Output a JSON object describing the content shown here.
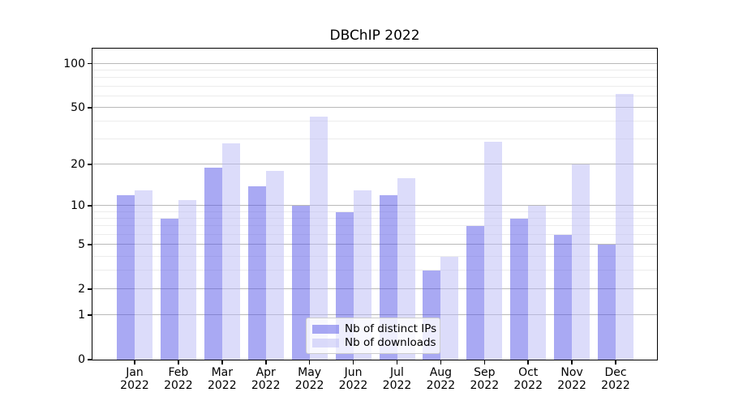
{
  "title": "DBChIP 2022",
  "chart_data": {
    "type": "bar",
    "title": "DBChIP 2022",
    "categories": [
      "Jan 2022",
      "Feb 2022",
      "Mar 2022",
      "Apr 2022",
      "May 2022",
      "Jun 2022",
      "Jul 2022",
      "Aug 2022",
      "Sep 2022",
      "Oct 2022",
      "Nov 2022",
      "Dec 2022"
    ],
    "category_months": [
      "Jan",
      "Feb",
      "Mar",
      "Apr",
      "May",
      "Jun",
      "Jul",
      "Aug",
      "Sep",
      "Oct",
      "Nov",
      "Dec"
    ],
    "category_year": "2022",
    "series": [
      {
        "name": "Nb of distinct IPs",
        "values": [
          12,
          8,
          19,
          14,
          10,
          9,
          12,
          3,
          7,
          8,
          6,
          5
        ],
        "color": "#aaaaf4",
        "fill_rgba": "rgba(84,84,232,0.5)"
      },
      {
        "name": "Nb of downloads",
        "values": [
          13,
          11,
          28,
          18,
          43,
          13,
          16,
          4,
          29,
          10,
          20,
          62
        ],
        "color": "#dcdcfa",
        "fill_rgba": "rgba(185,185,245,0.5)"
      }
    ],
    "yscale": "log1p",
    "ylim": [
      0,
      127
    ],
    "yticks_major": [
      0,
      1,
      2,
      5,
      10,
      20,
      50,
      100
    ],
    "yticks_minor": [
      3,
      4,
      6,
      7,
      8,
      9,
      30,
      40,
      60,
      70,
      80,
      90
    ],
    "grid": true,
    "legend_position": "lower center"
  },
  "legend": {
    "entries": [
      "Nb of distinct IPs",
      "Nb of downloads"
    ]
  },
  "colors": {
    "major_grid": "#b9b9b9",
    "minor_grid": "#ececec",
    "axis": "#000000",
    "background": "#ffffff",
    "distinct_ips_bar": "#aaaaf4",
    "downloads_bar": "#dcdcfa"
  }
}
